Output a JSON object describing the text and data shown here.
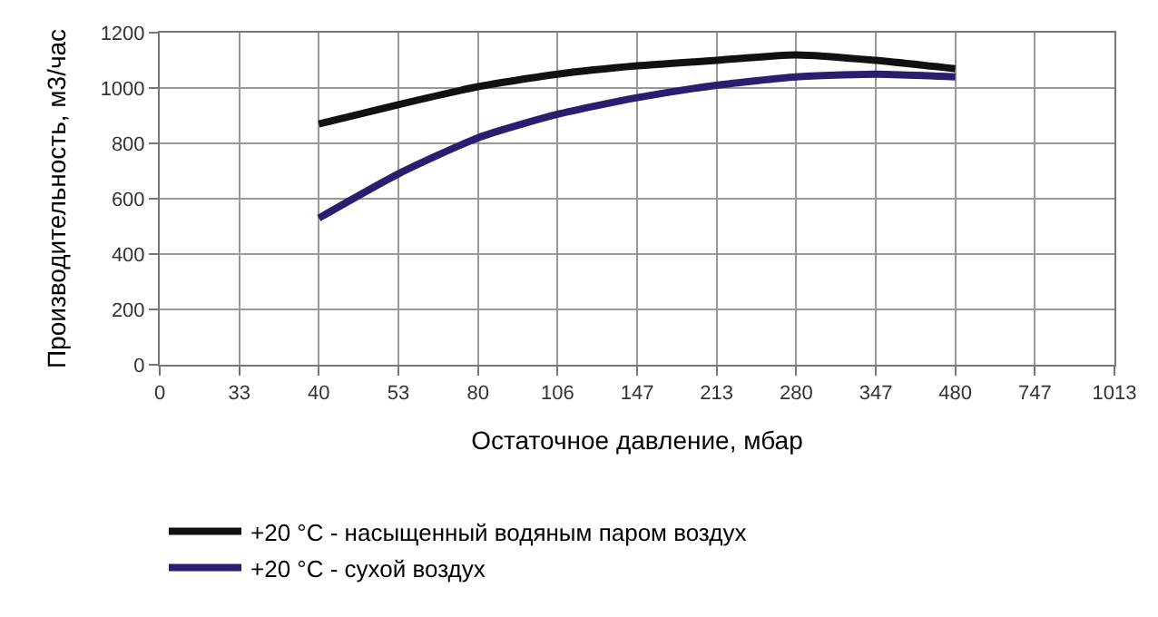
{
  "chart_data": {
    "type": "line",
    "xlabel": "Остаточное давление, мбар",
    "ylabel": "Производительность, м3/час",
    "categories": [
      "0",
      "33",
      "40",
      "53",
      "80",
      "106",
      "147",
      "213",
      "280",
      "347",
      "480",
      "747",
      "1013"
    ],
    "series": [
      {
        "name": "+20 °C - насыщенный водяным паром воздух",
        "color": "#111111",
        "values": [
          null,
          null,
          870,
          940,
          1005,
          1050,
          1080,
          1100,
          1120,
          1100,
          1070,
          null,
          null
        ]
      },
      {
        "name": "+20 °C - сухой воздух",
        "color": "#2a1f6e",
        "values": [
          null,
          null,
          530,
          690,
          820,
          905,
          965,
          1010,
          1040,
          1050,
          1040,
          null,
          null
        ]
      }
    ],
    "ylim": [
      0,
      1200
    ],
    "yticks": [
      0,
      200,
      400,
      600,
      800,
      1000,
      1200
    ],
    "grid": true,
    "legend": "bottom",
    "marker": "none",
    "line_style": "solid"
  }
}
